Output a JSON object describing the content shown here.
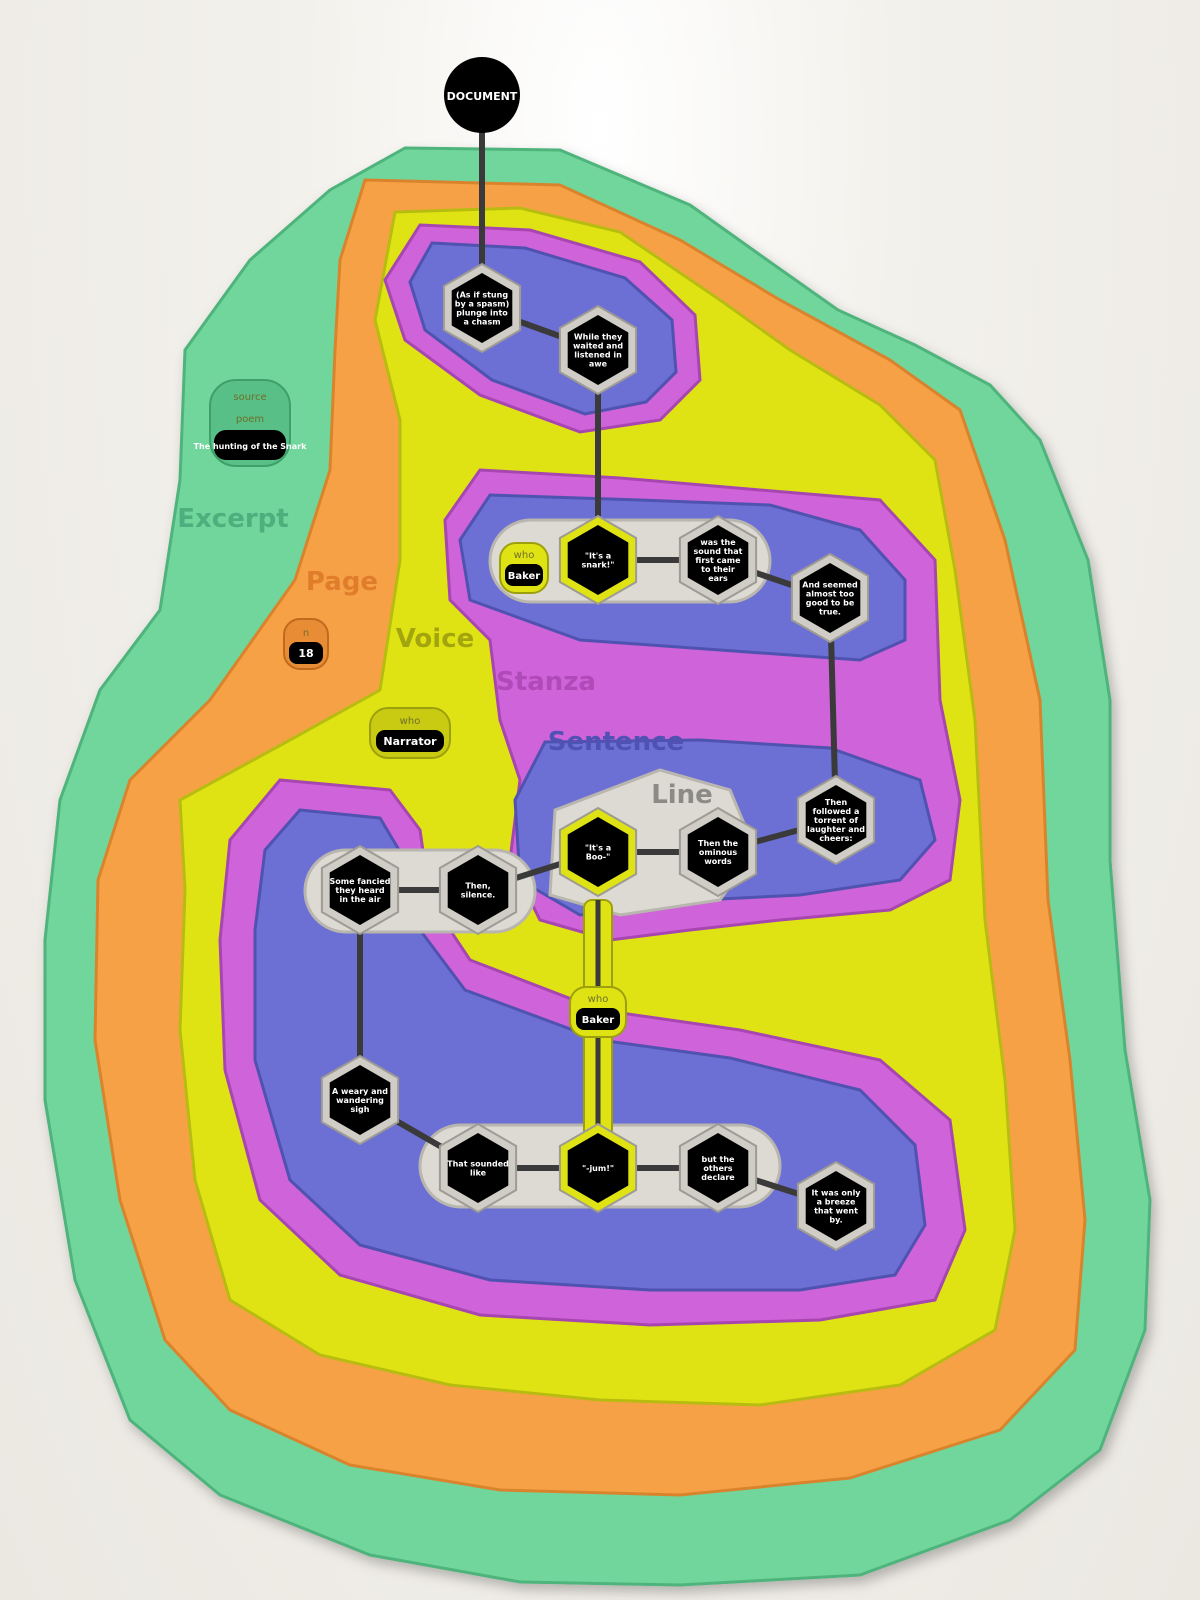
{
  "colors": {
    "excerpt": "#6fd69b",
    "page": "#f7a146",
    "voice": "#dfe313",
    "stanza": "#cf63d9",
    "sentence": "#6c6fd4",
    "line": "#dcdad3",
    "node": "#000000",
    "edge": "#3a3a3a"
  },
  "root": {
    "label": "DOCUMENT"
  },
  "region_labels": {
    "excerpt": "Excerpt",
    "page": "Page",
    "voice": "Voice",
    "stanza": "Stanza",
    "sentence": "Sentence",
    "line": "Line"
  },
  "attributes": {
    "source_key": "source",
    "poem_key": "poem",
    "poem_value": "The hunting of the Snark",
    "n_key": "n",
    "n_value": "18",
    "who_key": "who",
    "who_narrator": "Narrator",
    "who_baker": "Baker"
  },
  "nodes": {
    "n1": "(As if stung by a spasm) plunge into a chasm",
    "n2": "While they waited and listened in awe",
    "n3": "\"It's a snark!\"",
    "n4": "was the sound that first came to their ears",
    "n5": "And seemed almost too good to be true.",
    "n6": "Then followed a torrent of laughter and cheers:",
    "n7": "Then the ominous words",
    "n8": "\"It's a Boo-\"",
    "n9": "Then, silence.",
    "n10": "Some fancied they heard in the air",
    "n11": "A weary and wandering sigh",
    "n12": "That sounded like",
    "n13": "\"-jum!\"",
    "n14": "but the others declare",
    "n15": "It was only a breeze that went by."
  }
}
